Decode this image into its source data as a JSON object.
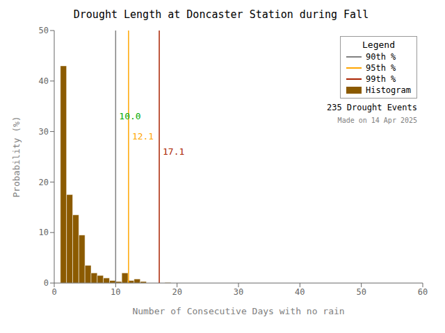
{
  "chart_data": {
    "type": "histogram",
    "title": "Drought Length at Doncaster Station during Fall",
    "x_label": "Number of Consecutive Days with no rain",
    "y_label": "Probability (%)",
    "name": "Histogram",
    "color": "#8B5A00",
    "bins": [
      1,
      2,
      3,
      4,
      5,
      6,
      7,
      8,
      9,
      10,
      11,
      12,
      13,
      14,
      15,
      16,
      17,
      18,
      19,
      20,
      21
    ],
    "values": [
      43.0,
      17.5,
      13.5,
      9.5,
      3.5,
      2.0,
      1.5,
      1.0,
      0.5,
      0.3,
      2.0,
      0.5,
      0.8,
      0.3,
      0.0,
      0.0,
      0.0,
      0.1,
      0.0,
      0.0
    ],
    "xlim": [
      0,
      60
    ],
    "ylim": [
      0,
      50
    ],
    "xticks": [
      0,
      10,
      20,
      30,
      40,
      50,
      60
    ],
    "yticks": [
      0,
      10,
      20,
      30,
      40,
      50
    ],
    "grid": false,
    "legend": "upper right",
    "legend_title": "Legend",
    "vlines": [
      {
        "x": 10.0,
        "name": "90th %",
        "color": "#808080"
      },
      {
        "x": 12.1,
        "name": "95th %",
        "color": "#FFA500"
      },
      {
        "x": 17.1,
        "name": "99th %",
        "color": "#AA2200"
      }
    ],
    "annotations": [
      {
        "x": 10.0,
        "y": 33,
        "text": "10.0",
        "color": "#00AA00"
      },
      {
        "x": 12.1,
        "y": 29,
        "text": "12.1",
        "color": "#FFA500"
      },
      {
        "x": 17.1,
        "y": 26,
        "text": "17.1",
        "color": "#AA2200"
      }
    ],
    "notes": [
      {
        "text": "235 Drought Events",
        "color": "black"
      },
      {
        "text": "Made on 14 Apr 2025",
        "color": "gray"
      }
    ]
  }
}
